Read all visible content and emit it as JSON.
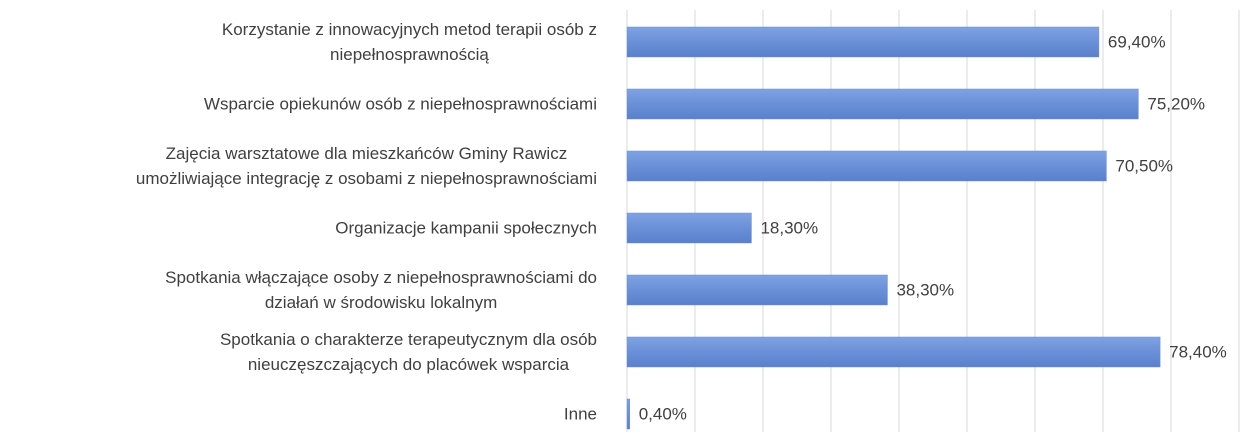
{
  "chart_data": {
    "type": "bar",
    "orientation": "horizontal",
    "categories": [
      "Korzystanie z innowacyjnych metod terapii osób z\nniepełnosprawnością",
      "Wsparcie opiekunów osób z niepełnosprawnościami",
      "Zajęcia warsztatowe dla mieszkańców Gminy Rawicz\numożliwiające integrację z osobami z niepełnosprawnościami",
      "Organizacje kampanii społecznych",
      "Spotkania włączające osoby z niepełnosprawnościami do\ndziałań w środowisku lokalnym",
      "Spotkania o charakterze terapeutycznym dla osób\nnieuczęszczających do placówek wsparcia",
      "Inne"
    ],
    "values": [
      69.4,
      75.2,
      70.5,
      18.3,
      38.3,
      78.4,
      0.4
    ],
    "value_labels": [
      "69,40%",
      "75,20%",
      "70,50%",
      "18,30%",
      "38,30%",
      "78,40%",
      "0,40%"
    ],
    "color": "#6a90d8",
    "xlim": [
      0,
      90
    ],
    "xticks": [
      0,
      10,
      20,
      30,
      40,
      50,
      60,
      70,
      80,
      90
    ],
    "grid": true
  }
}
